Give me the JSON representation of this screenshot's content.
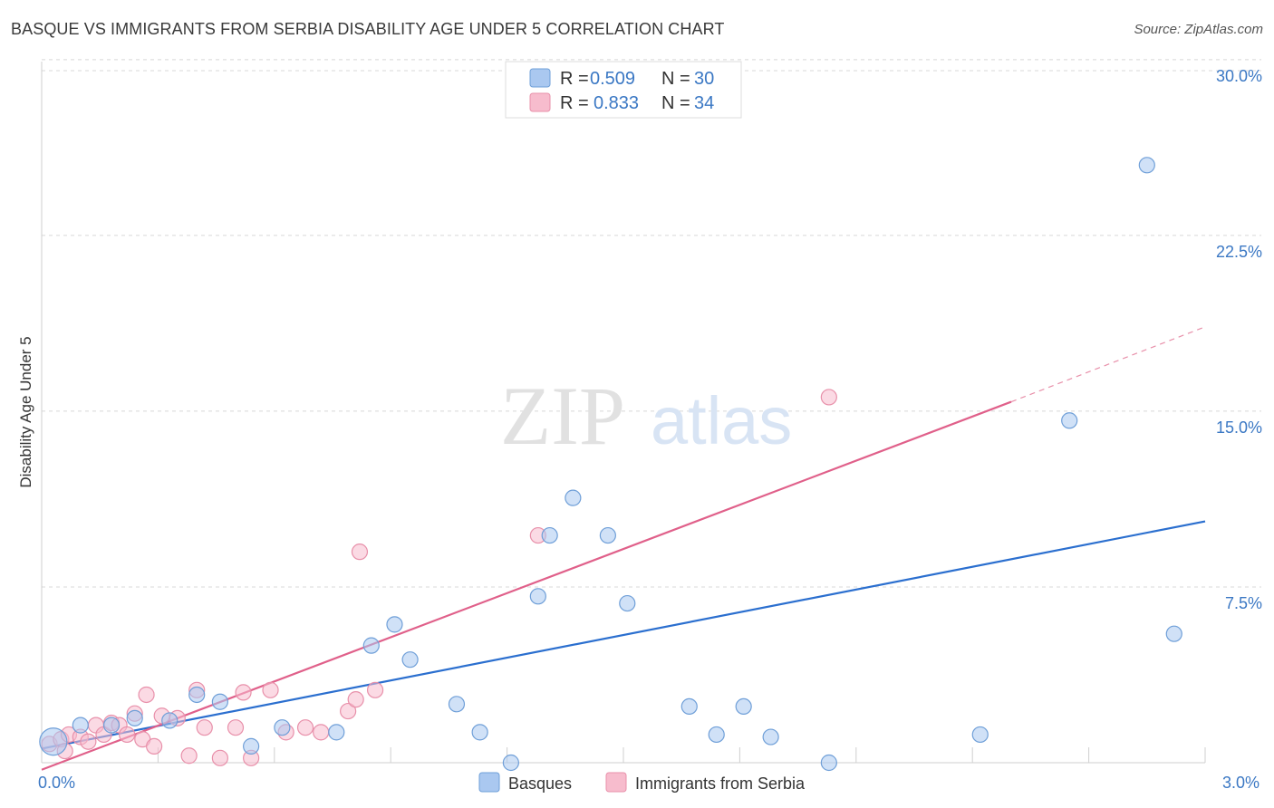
{
  "header": {
    "title": "BASQUE VS IMMIGRANTS FROM SERBIA DISABILITY AGE UNDER 5 CORRELATION CHART",
    "source": "Source: ZipAtlas.com"
  },
  "watermark": {
    "zip": "ZIP",
    "atlas": "atlas"
  },
  "colors": {
    "blue_fill": "#aac8f0",
    "blue_stroke": "#6f9fd8",
    "blue_line": "#2b6fcf",
    "pink_fill": "#f7bccd",
    "pink_stroke": "#e890aa",
    "pink_line": "#e0608a",
    "tick_text": "#3b78c4",
    "grid": "#d8d8d8"
  },
  "chart_data": {
    "type": "scatter",
    "title": "BASQUE VS IMMIGRANTS FROM SERBIA DISABILITY AGE UNDER 5 CORRELATION CHART",
    "xlabel": "",
    "ylabel": "Disability Age Under 5",
    "xlim": [
      0,
      3.0
    ],
    "ylim": [
      0,
      31
    ],
    "x_tick_labels": [
      "0.0%",
      "3.0%"
    ],
    "y_ticks": [
      7.5,
      15.0,
      22.5,
      30.0
    ],
    "y_tick_labels": [
      "7.5%",
      "15.0%",
      "22.5%",
      "30.0%"
    ],
    "grid": true,
    "legend": [
      {
        "r_label": "R =",
        "r_value": "0.509",
        "n_label": "N =",
        "n_value": "30"
      },
      {
        "r_label": "R =",
        "r_value": "0.833",
        "n_label": "N =",
        "n_value": "34"
      }
    ],
    "series": [
      {
        "name": "Basques",
        "color": "#aac8f0",
        "points": [
          [
            0.03,
            0.9
          ],
          [
            0.1,
            1.6
          ],
          [
            0.18,
            1.6
          ],
          [
            0.24,
            1.9
          ],
          [
            0.33,
            1.8
          ],
          [
            0.4,
            2.9
          ],
          [
            0.46,
            2.6
          ],
          [
            0.54,
            0.7
          ],
          [
            0.62,
            1.5
          ],
          [
            0.76,
            1.3
          ],
          [
            0.85,
            5.0
          ],
          [
            0.91,
            5.9
          ],
          [
            0.95,
            4.4
          ],
          [
            1.07,
            2.5
          ],
          [
            1.13,
            1.3
          ],
          [
            1.21,
            0.0
          ],
          [
            1.28,
            7.1
          ],
          [
            1.31,
            9.7
          ],
          [
            1.37,
            11.3
          ],
          [
            1.46,
            9.7
          ],
          [
            1.51,
            6.8
          ],
          [
            1.67,
            2.4
          ],
          [
            1.74,
            1.2
          ],
          [
            1.81,
            2.4
          ],
          [
            1.88,
            1.1
          ],
          [
            2.03,
            0.0
          ],
          [
            2.42,
            1.2
          ],
          [
            2.65,
            14.6
          ],
          [
            2.85,
            25.5
          ],
          [
            2.92,
            5.5
          ]
        ],
        "trend": {
          "x": [
            0.0,
            3.0
          ],
          "y": [
            0.6,
            10.3
          ]
        }
      },
      {
        "name": "Immigrants from Serbia",
        "color": "#f7bccd",
        "points": [
          [
            0.02,
            0.8
          ],
          [
            0.05,
            1.0
          ],
          [
            0.07,
            1.2
          ],
          [
            0.1,
            1.1
          ],
          [
            0.12,
            0.9
          ],
          [
            0.14,
            1.6
          ],
          [
            0.16,
            1.2
          ],
          [
            0.18,
            1.7
          ],
          [
            0.2,
            1.6
          ],
          [
            0.22,
            1.2
          ],
          [
            0.24,
            2.1
          ],
          [
            0.26,
            1.0
          ],
          [
            0.27,
            2.9
          ],
          [
            0.29,
            0.7
          ],
          [
            0.31,
            2.0
          ],
          [
            0.35,
            1.9
          ],
          [
            0.38,
            0.3
          ],
          [
            0.4,
            3.1
          ],
          [
            0.42,
            1.5
          ],
          [
            0.46,
            0.2
          ],
          [
            0.5,
            1.5
          ],
          [
            0.52,
            3.0
          ],
          [
            0.54,
            0.2
          ],
          [
            0.59,
            3.1
          ],
          [
            0.63,
            1.3
          ],
          [
            0.68,
            1.5
          ],
          [
            0.72,
            1.3
          ],
          [
            0.79,
            2.2
          ],
          [
            0.81,
            2.7
          ],
          [
            0.82,
            9.0
          ],
          [
            0.86,
            3.1
          ],
          [
            1.28,
            9.7
          ],
          [
            2.03,
            15.6
          ],
          [
            0.06,
            0.5
          ]
        ],
        "trend": {
          "x": [
            0.0,
            2.5
          ],
          "y": [
            -0.3,
            15.4
          ]
        },
        "trend_dashed": {
          "x": [
            2.5,
            3.0
          ],
          "y": [
            15.4,
            18.6
          ]
        }
      }
    ]
  }
}
